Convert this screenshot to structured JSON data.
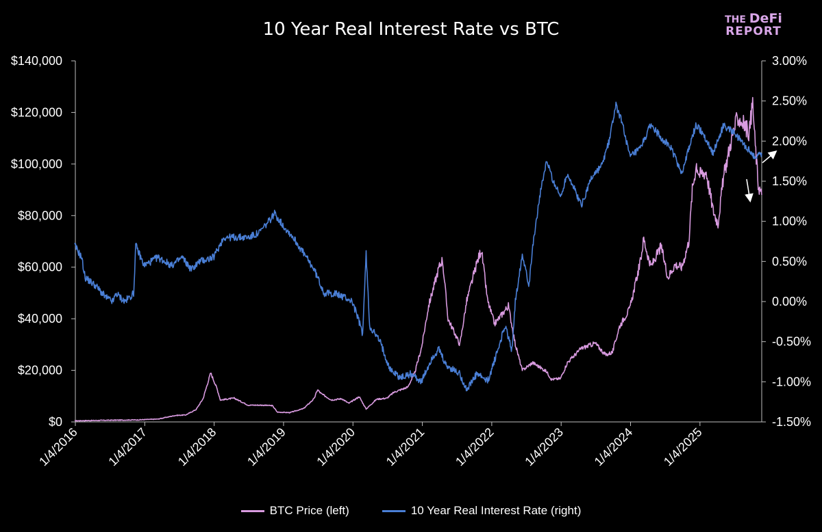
{
  "title": "10 Year Real Interest Rate vs BTC",
  "logo": {
    "line1_small": "THE",
    "line1_big": "DeFi",
    "line2": "REPORT"
  },
  "colors": {
    "btc": "#d99be0",
    "rate": "#4a7fd6",
    "axis": "#bfbfbf",
    "grid": "#262626"
  },
  "chart_data": {
    "type": "line",
    "title": "10 Year Real Interest Rate vs BTC",
    "grid": false,
    "legend_position": "bottom",
    "x_tick_labels": [
      "1/4/2016",
      "1/4/2017",
      "1/4/2018",
      "1/4/2019",
      "1/4/2020",
      "1/4/2021",
      "1/4/2022",
      "1/4/2023",
      "1/4/2024",
      "1/4/2025"
    ],
    "x_range": [
      2016.01,
      2025.9
    ],
    "y_left": {
      "range": [
        0,
        140000
      ],
      "ticks": [
        0,
        20000,
        40000,
        60000,
        80000,
        100000,
        120000,
        140000
      ],
      "tick_labels": [
        "$0",
        "$20,000",
        "$40,000",
        "$60,000",
        "$80,000",
        "$100,000",
        "$120,000",
        "$140,000"
      ]
    },
    "y_right": {
      "range": [
        -1.5,
        3.0
      ],
      "ticks": [
        -1.5,
        -1.0,
        -0.5,
        0,
        0.5,
        1.0,
        1.5,
        2.0,
        2.5,
        3.0
      ],
      "tick_labels": [
        "-1.50%",
        "-1.00%",
        "-0.50%",
        "0.00%",
        "0.50%",
        "1.00%",
        "1.50%",
        "2.00%",
        "2.50%",
        "3.00%"
      ]
    },
    "series": [
      {
        "name": "BTC Price (left)",
        "axis": "left",
        "points": [
          [
            2016.0,
            430
          ],
          [
            2016.5,
            650
          ],
          [
            2016.9,
            780
          ],
          [
            2017.2,
            1100
          ],
          [
            2017.45,
            2500
          ],
          [
            2017.6,
            2700
          ],
          [
            2017.75,
            4800
          ],
          [
            2017.85,
            9000
          ],
          [
            2017.96,
            19000
          ],
          [
            2018.05,
            13000
          ],
          [
            2018.1,
            8500
          ],
          [
            2018.3,
            9200
          ],
          [
            2018.5,
            6500
          ],
          [
            2018.7,
            6500
          ],
          [
            2018.85,
            6300
          ],
          [
            2018.92,
            3800
          ],
          [
            2019.1,
            3600
          ],
          [
            2019.3,
            5200
          ],
          [
            2019.45,
            9000
          ],
          [
            2019.5,
            12500
          ],
          [
            2019.55,
            11000
          ],
          [
            2019.7,
            8500
          ],
          [
            2019.85,
            9000
          ],
          [
            2019.95,
            7200
          ],
          [
            2020.1,
            9800
          ],
          [
            2020.2,
            5000
          ],
          [
            2020.35,
            8800
          ],
          [
            2020.5,
            9200
          ],
          [
            2020.6,
            11500
          ],
          [
            2020.8,
            13500
          ],
          [
            2020.9,
            19000
          ],
          [
            2021.0,
            29000
          ],
          [
            2021.1,
            45000
          ],
          [
            2021.25,
            60000
          ],
          [
            2021.3,
            63000
          ],
          [
            2021.38,
            40000
          ],
          [
            2021.5,
            33000
          ],
          [
            2021.55,
            30000
          ],
          [
            2021.65,
            47000
          ],
          [
            2021.8,
            62000
          ],
          [
            2021.86,
            67000
          ],
          [
            2021.95,
            47000
          ],
          [
            2022.05,
            38000
          ],
          [
            2022.25,
            45000
          ],
          [
            2022.35,
            30000
          ],
          [
            2022.45,
            20000
          ],
          [
            2022.6,
            23000
          ],
          [
            2022.8,
            19500
          ],
          [
            2022.87,
            16500
          ],
          [
            2023.0,
            16800
          ],
          [
            2023.1,
            23000
          ],
          [
            2023.3,
            28500
          ],
          [
            2023.5,
            30500
          ],
          [
            2023.65,
            26000
          ],
          [
            2023.75,
            27000
          ],
          [
            2023.85,
            37000
          ],
          [
            2024.0,
            44000
          ],
          [
            2024.15,
            62000
          ],
          [
            2024.2,
            71000
          ],
          [
            2024.3,
            60000
          ],
          [
            2024.45,
            68000
          ],
          [
            2024.55,
            56000
          ],
          [
            2024.65,
            61000
          ],
          [
            2024.75,
            60000
          ],
          [
            2024.85,
            70000
          ],
          [
            2024.9,
            90000
          ],
          [
            2024.96,
            100000
          ],
          [
            2025.0,
            96000
          ],
          [
            2025.1,
            97000
          ],
          [
            2025.2,
            82000
          ],
          [
            2025.27,
            77000
          ],
          [
            2025.35,
            95000
          ],
          [
            2025.45,
            108000
          ],
          [
            2025.55,
            118000
          ],
          [
            2025.63,
            116000
          ],
          [
            2025.72,
            112000
          ],
          [
            2025.77,
            124000
          ],
          [
            2025.8,
            110000
          ],
          [
            2025.85,
            92000
          ],
          [
            2025.9,
            88000
          ]
        ]
      },
      {
        "name": "10 Year Real Interest Rate (right)",
        "axis": "right",
        "points": [
          [
            2016.0,
            0.7
          ],
          [
            2016.1,
            0.55
          ],
          [
            2016.15,
            0.3
          ],
          [
            2016.3,
            0.2
          ],
          [
            2016.45,
            0.05
          ],
          [
            2016.55,
            0.0
          ],
          [
            2016.6,
            0.1
          ],
          [
            2016.72,
            0.0
          ],
          [
            2016.85,
            0.1
          ],
          [
            2016.88,
            0.7
          ],
          [
            2017.0,
            0.45
          ],
          [
            2017.2,
            0.55
          ],
          [
            2017.4,
            0.45
          ],
          [
            2017.55,
            0.55
          ],
          [
            2017.68,
            0.4
          ],
          [
            2017.8,
            0.5
          ],
          [
            2018.0,
            0.55
          ],
          [
            2018.15,
            0.8
          ],
          [
            2018.3,
            0.8
          ],
          [
            2018.5,
            0.8
          ],
          [
            2018.65,
            0.85
          ],
          [
            2018.8,
            1.0
          ],
          [
            2018.88,
            1.1
          ],
          [
            2019.0,
            0.95
          ],
          [
            2019.15,
            0.8
          ],
          [
            2019.3,
            0.6
          ],
          [
            2019.45,
            0.4
          ],
          [
            2019.6,
            0.1
          ],
          [
            2019.75,
            0.1
          ],
          [
            2019.9,
            0.05
          ],
          [
            2020.0,
            0.0
          ],
          [
            2020.08,
            -0.2
          ],
          [
            2020.15,
            -0.4
          ],
          [
            2020.2,
            0.6
          ],
          [
            2020.25,
            -0.3
          ],
          [
            2020.4,
            -0.5
          ],
          [
            2020.55,
            -0.85
          ],
          [
            2020.7,
            -0.95
          ],
          [
            2020.85,
            -0.9
          ],
          [
            2021.0,
            -1.0
          ],
          [
            2021.15,
            -0.7
          ],
          [
            2021.25,
            -0.6
          ],
          [
            2021.35,
            -0.8
          ],
          [
            2021.55,
            -0.9
          ],
          [
            2021.65,
            -1.1
          ],
          [
            2021.8,
            -0.9
          ],
          [
            2021.95,
            -1.0
          ],
          [
            2022.1,
            -0.6
          ],
          [
            2022.2,
            -0.3
          ],
          [
            2022.3,
            -0.6
          ],
          [
            2022.35,
            0.0
          ],
          [
            2022.45,
            0.6
          ],
          [
            2022.55,
            0.2
          ],
          [
            2022.6,
            0.7
          ],
          [
            2022.7,
            1.3
          ],
          [
            2022.8,
            1.75
          ],
          [
            2022.9,
            1.5
          ],
          [
            2023.0,
            1.3
          ],
          [
            2023.1,
            1.6
          ],
          [
            2023.2,
            1.4
          ],
          [
            2023.3,
            1.2
          ],
          [
            2023.45,
            1.55
          ],
          [
            2023.6,
            1.7
          ],
          [
            2023.7,
            2.0
          ],
          [
            2023.8,
            2.45
          ],
          [
            2023.9,
            2.2
          ],
          [
            2024.0,
            1.8
          ],
          [
            2024.15,
            1.9
          ],
          [
            2024.3,
            2.2
          ],
          [
            2024.45,
            2.05
          ],
          [
            2024.6,
            1.9
          ],
          [
            2024.75,
            1.6
          ],
          [
            2024.85,
            1.9
          ],
          [
            2024.95,
            2.2
          ],
          [
            2025.05,
            2.1
          ],
          [
            2025.2,
            1.85
          ],
          [
            2025.35,
            2.2
          ],
          [
            2025.5,
            2.1
          ],
          [
            2025.6,
            2.0
          ],
          [
            2025.7,
            1.9
          ],
          [
            2025.8,
            1.8
          ],
          [
            2025.9,
            1.85
          ]
        ]
      }
    ]
  },
  "legend": {
    "btc": "BTC Price (left)",
    "rate": "10 Year Real Interest Rate (right)"
  }
}
